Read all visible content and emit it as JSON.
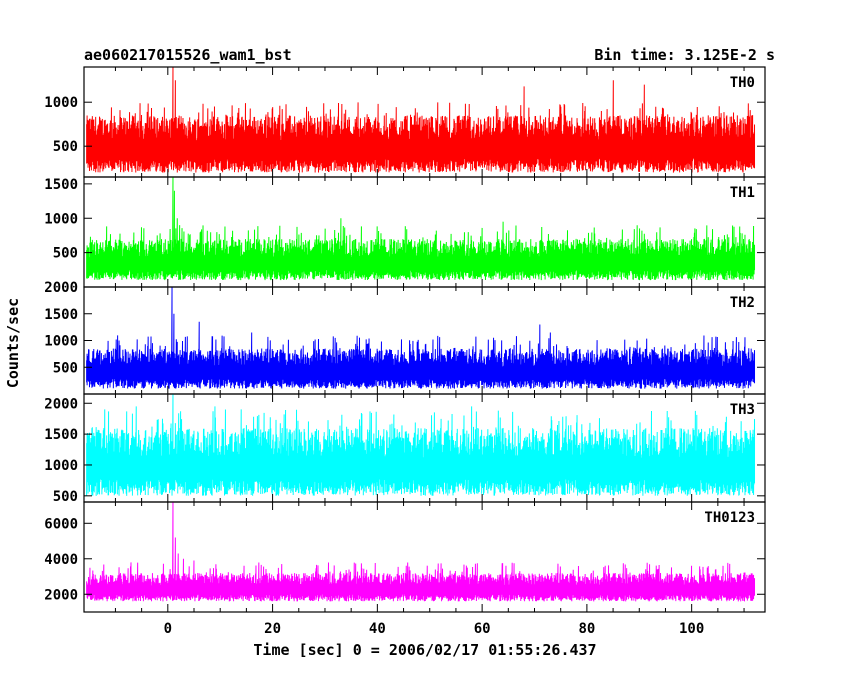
{
  "chart_data": {
    "type": "line",
    "title": "ae060217015526_wam1_bst",
    "subtitle": "Bin time: 3.125E-2 s",
    "xlabel": "Time [sec] 0 = 2006/02/17 01:55:26.437",
    "ylabel": "Counts/sec",
    "xlim": [
      -16,
      114
    ],
    "x_ticks": [
      0,
      20,
      40,
      60,
      80,
      100
    ],
    "data_range": [
      -15.5,
      112
    ],
    "bin_time": 0.03125,
    "panels": [
      {
        "name": "TH0",
        "color": "#ff0000",
        "ylim": [
          150,
          1400
        ],
        "y_ticks": [
          500,
          1000
        ],
        "lower_envelope": 200,
        "upper_envelope": 850,
        "typical_max": 1000,
        "spikes": [
          [
            1.0,
            1400
          ],
          [
            1.4,
            1250
          ],
          [
            68,
            1180
          ],
          [
            85,
            1250
          ],
          [
            91,
            1200
          ]
        ]
      },
      {
        "name": "TH1",
        "color": "#00ff00",
        "ylim": [
          0,
          1600
        ],
        "y_ticks": [
          500,
          1000,
          1500
        ],
        "lower_envelope": 100,
        "upper_envelope": 700,
        "typical_max": 900,
        "spikes": [
          [
            1.0,
            1600
          ],
          [
            1.3,
            1400
          ],
          [
            1.8,
            1000
          ],
          [
            2.3,
            900
          ],
          [
            33,
            1000
          ],
          [
            64,
            950
          ]
        ]
      },
      {
        "name": "TH2",
        "color": "#0000ff",
        "ylim": [
          0,
          2000
        ],
        "y_ticks": [
          500,
          1000,
          1500,
          2000
        ],
        "lower_envelope": 100,
        "upper_envelope": 850,
        "typical_max": 1100,
        "spikes": [
          [
            0.8,
            2000
          ],
          [
            1.2,
            1500
          ],
          [
            6,
            1350
          ],
          [
            71,
            1300
          ],
          [
            73,
            1150
          ],
          [
            16,
            1150
          ]
        ]
      },
      {
        "name": "TH3",
        "color": "#00ffff",
        "ylim": [
          400,
          2150
        ],
        "y_ticks": [
          500,
          1000,
          1500,
          2000
        ],
        "lower_envelope": 500,
        "upper_envelope": 1600,
        "typical_max": 1900,
        "spikes": [
          [
            1.0,
            2150
          ],
          [
            -6,
            1950
          ],
          [
            -12,
            1900
          ],
          [
            9,
            1950
          ],
          [
            14,
            1900
          ],
          [
            58,
            1950
          ]
        ]
      },
      {
        "name": "TH0123",
        "color": "#ff00ff",
        "ylim": [
          1000,
          7200
        ],
        "y_ticks": [
          2000,
          4000,
          6000
        ],
        "lower_envelope": 1600,
        "upper_envelope": 3200,
        "typical_max": 3800,
        "spikes": [
          [
            1.0,
            7200
          ],
          [
            1.4,
            5200
          ],
          [
            2.0,
            4300
          ],
          [
            3.0,
            4000
          ],
          [
            5.0,
            3900
          ],
          [
            -7,
            3800
          ]
        ]
      }
    ]
  }
}
